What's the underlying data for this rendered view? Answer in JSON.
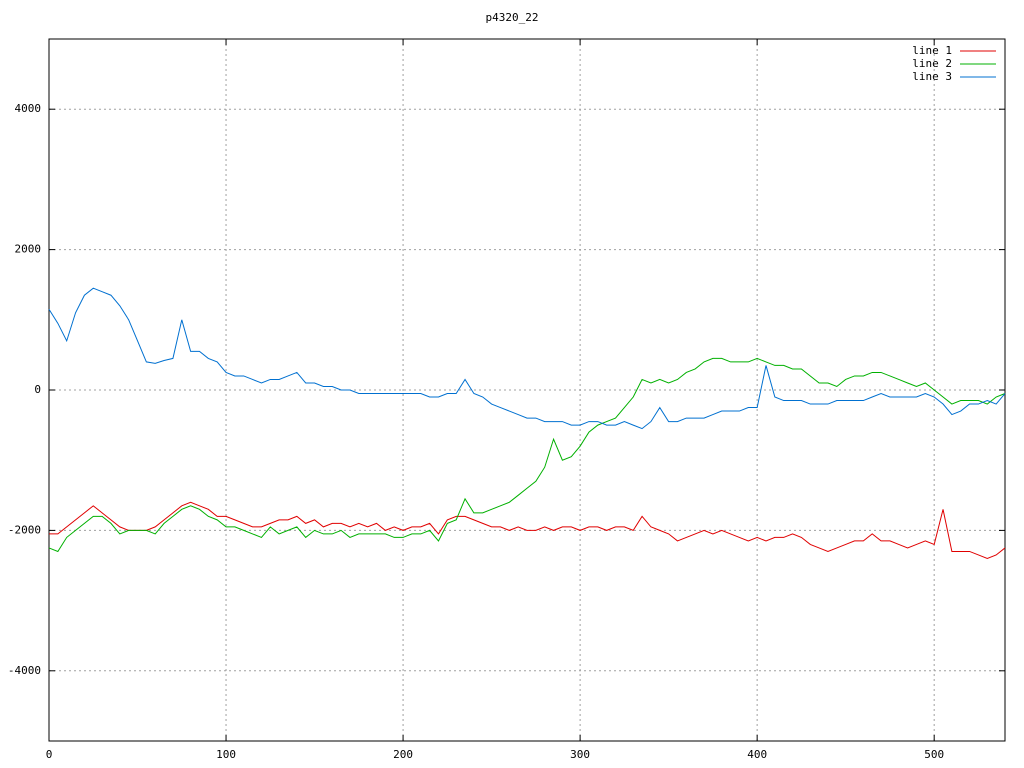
{
  "chart_data": {
    "type": "line",
    "title": "p4320_22",
    "x": [
      0,
      5,
      10,
      15,
      20,
      25,
      30,
      35,
      40,
      45,
      50,
      55,
      60,
      65,
      70,
      75,
      80,
      85,
      90,
      95,
      100,
      105,
      110,
      115,
      120,
      125,
      130,
      135,
      140,
      145,
      150,
      155,
      160,
      165,
      170,
      175,
      180,
      185,
      190,
      195,
      200,
      205,
      210,
      215,
      220,
      225,
      230,
      235,
      240,
      245,
      250,
      255,
      260,
      265,
      270,
      275,
      280,
      285,
      290,
      295,
      300,
      305,
      310,
      315,
      320,
      325,
      330,
      335,
      340,
      345,
      350,
      355,
      360,
      365,
      370,
      375,
      380,
      385,
      390,
      395,
      400,
      405,
      410,
      415,
      420,
      425,
      430,
      435,
      440,
      445,
      450,
      455,
      460,
      465,
      470,
      475,
      480,
      485,
      490,
      495,
      500,
      505,
      510,
      515,
      520,
      525,
      530,
      535,
      540
    ],
    "series": [
      {
        "name": "line 1",
        "color": "#e00000",
        "values": [
          -2050,
          -2050,
          -1950,
          -1850,
          -1750,
          -1650,
          -1750,
          -1850,
          -1950,
          -2000,
          -2000,
          -2000,
          -1950,
          -1850,
          -1750,
          -1650,
          -1600,
          -1650,
          -1700,
          -1800,
          -1800,
          -1850,
          -1900,
          -1950,
          -1950,
          -1900,
          -1850,
          -1850,
          -1800,
          -1900,
          -1850,
          -1950,
          -1900,
          -1900,
          -1950,
          -1900,
          -1950,
          -1900,
          -2000,
          -1950,
          -2000,
          -1950,
          -1950,
          -1900,
          -2050,
          -1850,
          -1800,
          -1800,
          -1850,
          -1900,
          -1950,
          -1950,
          -2000,
          -1950,
          -2000,
          -2000,
          -1950,
          -2000,
          -1950,
          -1950,
          -2000,
          -1950,
          -1950,
          -2000,
          -1950,
          -1950,
          -2000,
          -1800,
          -1950,
          -2000,
          -2050,
          -2150,
          -2100,
          -2050,
          -2000,
          -2050,
          -2000,
          -2050,
          -2100,
          -2150,
          -2100,
          -2150,
          -2100,
          -2100,
          -2050,
          -2100,
          -2200,
          -2250,
          -2300,
          -2250,
          -2200,
          -2150,
          -2150,
          -2050,
          -2150,
          -2150,
          -2200,
          -2250,
          -2200,
          -2150,
          -2200,
          -1700,
          -2300,
          -2300,
          -2300,
          -2350,
          -2400,
          -2350,
          -2250
        ]
      },
      {
        "name": "line 2",
        "color": "#00b000",
        "values": [
          -2250,
          -2300,
          -2100,
          -2000,
          -1900,
          -1800,
          -1800,
          -1900,
          -2050,
          -2000,
          -2000,
          -2000,
          -2050,
          -1900,
          -1800,
          -1700,
          -1650,
          -1700,
          -1800,
          -1850,
          -1950,
          -1950,
          -2000,
          -2050,
          -2100,
          -1950,
          -2050,
          -2000,
          -1950,
          -2100,
          -2000,
          -2050,
          -2050,
          -2000,
          -2100,
          -2050,
          -2050,
          -2050,
          -2050,
          -2100,
          -2100,
          -2050,
          -2050,
          -2000,
          -2150,
          -1900,
          -1850,
          -1550,
          -1750,
          -1750,
          -1700,
          -1650,
          -1600,
          -1500,
          -1400,
          -1300,
          -1100,
          -700,
          -1000,
          -950,
          -800,
          -600,
          -500,
          -450,
          -400,
          -250,
          -100,
          150,
          100,
          150,
          100,
          150,
          250,
          300,
          400,
          450,
          450,
          400,
          400,
          400,
          450,
          400,
          350,
          350,
          300,
          300,
          200,
          100,
          100,
          50,
          150,
          200,
          200,
          250,
          250,
          200,
          150,
          100,
          50,
          100,
          0,
          -100,
          -200,
          -150,
          -150,
          -150,
          -200,
          -100,
          -50
        ]
      },
      {
        "name": "line 3",
        "color": "#0070d0",
        "values": [
          1150,
          950,
          700,
          1100,
          1350,
          1450,
          1400,
          1350,
          1200,
          1000,
          700,
          400,
          380,
          420,
          450,
          1000,
          550,
          550,
          450,
          400,
          250,
          200,
          200,
          150,
          100,
          150,
          150,
          200,
          250,
          100,
          100,
          50,
          50,
          0,
          0,
          -50,
          -50,
          -50,
          -50,
          -50,
          -50,
          -50,
          -50,
          -100,
          -100,
          -50,
          -50,
          150,
          -50,
          -100,
          -200,
          -250,
          -300,
          -350,
          -400,
          -400,
          -450,
          -450,
          -450,
          -500,
          -500,
          -450,
          -450,
          -500,
          -500,
          -450,
          -500,
          -550,
          -450,
          -250,
          -450,
          -450,
          -400,
          -400,
          -400,
          -350,
          -300,
          -300,
          -300,
          -250,
          -250,
          350,
          -100,
          -150,
          -150,
          -150,
          -200,
          -200,
          -200,
          -150,
          -150,
          -150,
          -150,
          -100,
          -50,
          -100,
          -100,
          -100,
          -100,
          -50,
          -100,
          -200,
          -350,
          -300,
          -200,
          -200,
          -150,
          -200,
          -50
        ]
      }
    ],
    "xlim": [
      0,
      540
    ],
    "ylim": [
      -5000,
      5000
    ],
    "xticks": [
      0,
      100,
      200,
      300,
      400,
      500
    ],
    "yticks": [
      -4000,
      -2000,
      0,
      2000,
      4000
    ],
    "grid": true,
    "legend": "top-right"
  }
}
